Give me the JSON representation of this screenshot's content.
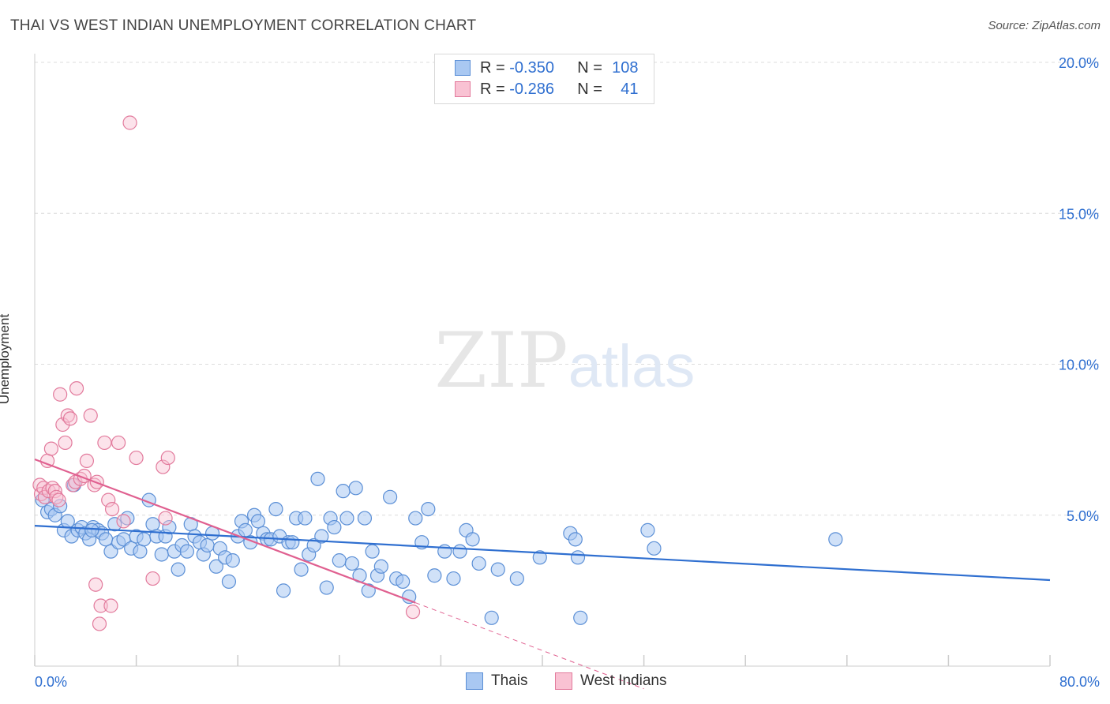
{
  "title": "THAI VS WEST INDIAN UNEMPLOYMENT CORRELATION CHART",
  "source": "Source: ZipAtlas.com",
  "watermark": {
    "zip": "ZIP",
    "atlas": "atlas"
  },
  "legend": {
    "rows": [
      {
        "r_label": "R =",
        "r_value": "-0.350",
        "n_label": "N =",
        "n_value": "108",
        "color": "#a9c8f2",
        "border": "#5b8fd6"
      },
      {
        "r_label": "R =",
        "r_value": "-0.286",
        "n_label": "N =",
        "n_value": "41",
        "color": "#f9c2d3",
        "border": "#e27a9c"
      }
    ]
  },
  "bottom_legend": [
    {
      "label": "Thais",
      "color": "#a9c8f2",
      "border": "#5b8fd6"
    },
    {
      "label": "West Indians",
      "color": "#f9c2d3",
      "border": "#e27a9c"
    }
  ],
  "chart_data": {
    "type": "scatter",
    "title": "THAI VS WEST INDIAN UNEMPLOYMENT CORRELATION CHART",
    "xlabel": "",
    "ylabel": "Unemployment",
    "xlim": [
      0,
      80
    ],
    "ylim": [
      0,
      20.5
    ],
    "x_tick_labels": [
      "0.0%",
      "80.0%"
    ],
    "y_ticks": [
      5,
      10,
      15,
      20
    ],
    "y_tick_labels": [
      "5.0%",
      "10.0%",
      "15.0%",
      "20.0%"
    ],
    "grid": "horizontal dashed",
    "legend_position": "top-center",
    "colors": {
      "thais": "#2f6fd0",
      "west_indians": "#e06090"
    },
    "series": [
      {
        "name": "Thais",
        "trend": {
          "x0": 0,
          "y0": 4.65,
          "x1": 80,
          "y1": 2.85
        },
        "points": [
          [
            0.6,
            5.5
          ],
          [
            1.0,
            5.1
          ],
          [
            1.3,
            5.2
          ],
          [
            1.6,
            5.0
          ],
          [
            2.0,
            5.3
          ],
          [
            2.3,
            4.5
          ],
          [
            2.6,
            4.8
          ],
          [
            2.9,
            4.3
          ],
          [
            3.1,
            6.0
          ],
          [
            3.4,
            4.5
          ],
          [
            3.7,
            4.6
          ],
          [
            4.0,
            4.4
          ],
          [
            4.3,
            4.2
          ],
          [
            4.6,
            4.6
          ],
          [
            5.0,
            4.5
          ],
          [
            5.3,
            4.4
          ],
          [
            5.6,
            4.2
          ],
          [
            6.0,
            3.8
          ],
          [
            6.3,
            4.7
          ],
          [
            6.6,
            4.1
          ],
          [
            7.0,
            4.2
          ],
          [
            7.3,
            4.9
          ],
          [
            7.6,
            3.9
          ],
          [
            8.0,
            4.3
          ],
          [
            8.3,
            3.8
          ],
          [
            8.6,
            4.2
          ],
          [
            9.0,
            5.5
          ],
          [
            9.3,
            4.7
          ],
          [
            9.6,
            4.3
          ],
          [
            10.0,
            3.7
          ],
          [
            10.3,
            4.3
          ],
          [
            10.6,
            4.6
          ],
          [
            11.0,
            3.8
          ],
          [
            11.3,
            3.2
          ],
          [
            11.6,
            4.0
          ],
          [
            12.0,
            3.8
          ],
          [
            12.3,
            4.7
          ],
          [
            12.6,
            4.3
          ],
          [
            13.0,
            4.1
          ],
          [
            13.3,
            3.7
          ],
          [
            13.6,
            4.0
          ],
          [
            14.0,
            4.4
          ],
          [
            14.3,
            3.3
          ],
          [
            14.6,
            3.9
          ],
          [
            15.0,
            3.6
          ],
          [
            15.3,
            2.8
          ],
          [
            15.6,
            3.5
          ],
          [
            16.0,
            4.3
          ],
          [
            16.3,
            4.8
          ],
          [
            16.6,
            4.5
          ],
          [
            17.0,
            4.1
          ],
          [
            17.3,
            5.0
          ],
          [
            17.6,
            4.8
          ],
          [
            18.0,
            4.4
          ],
          [
            18.3,
            4.2
          ],
          [
            18.6,
            4.2
          ],
          [
            19.0,
            5.2
          ],
          [
            19.3,
            4.3
          ],
          [
            19.6,
            2.5
          ],
          [
            20.0,
            4.1
          ],
          [
            20.3,
            4.1
          ],
          [
            20.6,
            4.9
          ],
          [
            21.0,
            3.2
          ],
          [
            21.3,
            4.9
          ],
          [
            21.6,
            3.7
          ],
          [
            22.0,
            4.0
          ],
          [
            22.3,
            6.2
          ],
          [
            22.6,
            4.3
          ],
          [
            23.0,
            2.6
          ],
          [
            23.3,
            4.9
          ],
          [
            23.6,
            4.6
          ],
          [
            24.0,
            3.5
          ],
          [
            24.3,
            5.8
          ],
          [
            24.6,
            4.9
          ],
          [
            25.0,
            3.4
          ],
          [
            25.3,
            5.9
          ],
          [
            25.6,
            3.0
          ],
          [
            26.0,
            4.9
          ],
          [
            26.3,
            2.5
          ],
          [
            26.6,
            3.8
          ],
          [
            27.0,
            3.0
          ],
          [
            27.3,
            3.3
          ],
          [
            28.0,
            5.6
          ],
          [
            28.5,
            2.9
          ],
          [
            29.0,
            2.8
          ],
          [
            29.5,
            2.3
          ],
          [
            30.0,
            4.9
          ],
          [
            30.5,
            4.1
          ],
          [
            31.0,
            5.2
          ],
          [
            31.5,
            3.0
          ],
          [
            32.3,
            3.8
          ],
          [
            33.0,
            2.9
          ],
          [
            33.5,
            3.8
          ],
          [
            34.0,
            4.5
          ],
          [
            34.5,
            4.2
          ],
          [
            35.0,
            3.4
          ],
          [
            36.0,
            1.6
          ],
          [
            36.5,
            3.2
          ],
          [
            38.0,
            2.9
          ],
          [
            39.8,
            3.6
          ],
          [
            42.2,
            4.4
          ],
          [
            42.6,
            4.2
          ],
          [
            42.8,
            3.6
          ],
          [
            43.0,
            1.6
          ],
          [
            48.3,
            4.5
          ],
          [
            48.8,
            3.9
          ],
          [
            63.1,
            4.2
          ],
          [
            4.5,
            4.5
          ]
        ]
      },
      {
        "name": "West Indians",
        "trend": {
          "x0": 0,
          "y0": 6.85,
          "x1": 30,
          "y1": 2.1,
          "dash_to_x": 48
        },
        "points": [
          [
            0.4,
            6.0
          ],
          [
            0.5,
            5.7
          ],
          [
            0.7,
            5.9
          ],
          [
            0.8,
            5.6
          ],
          [
            1.0,
            6.8
          ],
          [
            1.1,
            5.8
          ],
          [
            1.3,
            7.2
          ],
          [
            1.4,
            5.9
          ],
          [
            1.6,
            5.8
          ],
          [
            1.7,
            5.6
          ],
          [
            1.9,
            5.5
          ],
          [
            2.0,
            9.0
          ],
          [
            2.2,
            8.0
          ],
          [
            2.4,
            7.4
          ],
          [
            2.6,
            8.3
          ],
          [
            2.8,
            8.2
          ],
          [
            3.0,
            6.0
          ],
          [
            3.2,
            6.1
          ],
          [
            3.3,
            9.2
          ],
          [
            3.6,
            6.2
          ],
          [
            3.9,
            6.3
          ],
          [
            4.1,
            6.8
          ],
          [
            4.4,
            8.3
          ],
          [
            4.7,
            6.0
          ],
          [
            4.9,
            6.1
          ],
          [
            5.2,
            2.0
          ],
          [
            5.5,
            7.4
          ],
          [
            5.8,
            5.5
          ],
          [
            6.1,
            5.2
          ],
          [
            6.6,
            7.4
          ],
          [
            7.0,
            4.8
          ],
          [
            7.5,
            18.0
          ],
          [
            8.0,
            6.9
          ],
          [
            9.3,
            2.9
          ],
          [
            10.1,
            6.6
          ],
          [
            10.3,
            4.9
          ],
          [
            10.5,
            6.9
          ],
          [
            4.8,
            2.7
          ],
          [
            5.1,
            1.4
          ],
          [
            6.0,
            2.0
          ],
          [
            29.8,
            1.8
          ]
        ]
      }
    ]
  }
}
